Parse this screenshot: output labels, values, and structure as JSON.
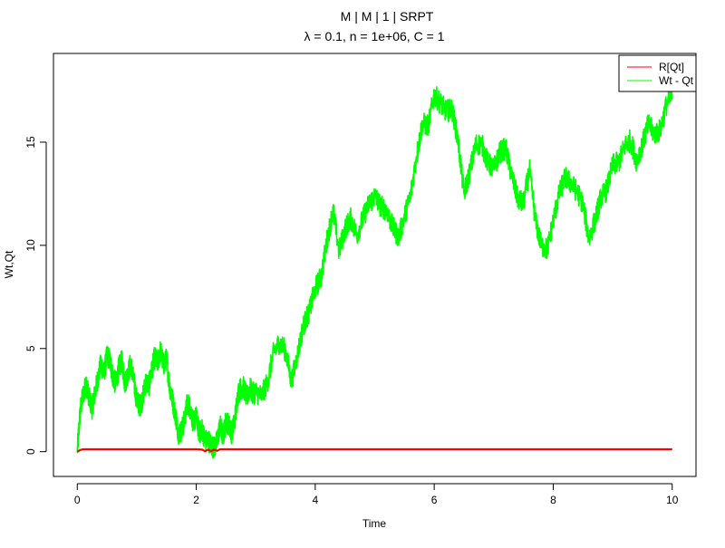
{
  "chart_data": {
    "type": "line",
    "title": "M | M | 1 | SRPT",
    "subtitle": "λ = 0.1, n = 1e+06, C = 1",
    "xlabel": "Time",
    "ylabel": "Wt,Qt",
    "xlim": [
      -0.4,
      10.4
    ],
    "ylim": [
      -1.2,
      19.3
    ],
    "xticks": [
      0,
      2,
      4,
      6,
      8,
      10
    ],
    "yticks": [
      0,
      5,
      10,
      15
    ],
    "grid": false,
    "legend_position": "top-right",
    "series": [
      {
        "name": "R[Qt]",
        "color": "#ff0000",
        "x": [
          0,
          0.05,
          0.1,
          0.5,
          1.0,
          1.5,
          2.0,
          2.1,
          2.15,
          2.2,
          2.25,
          2.3,
          2.35,
          2.4,
          2.6,
          3,
          4,
          5,
          6,
          7,
          8,
          9,
          10
        ],
        "y": [
          0,
          0.08,
          0.12,
          0.12,
          0.12,
          0.12,
          0.12,
          0.1,
          0.02,
          0.1,
          0.02,
          0.1,
          0.04,
          0.12,
          0.12,
          0.12,
          0.12,
          0.12,
          0.12,
          0.12,
          0.12,
          0.12,
          0.12
        ]
      },
      {
        "name": "Wt - Qt",
        "color": "#00ff00",
        "x": [
          0,
          0.05,
          0.1,
          0.15,
          0.2,
          0.25,
          0.3,
          0.35,
          0.4,
          0.45,
          0.5,
          0.55,
          0.6,
          0.65,
          0.7,
          0.75,
          0.8,
          0.85,
          0.9,
          0.95,
          1.0,
          1.05,
          1.1,
          1.15,
          1.2,
          1.25,
          1.3,
          1.35,
          1.4,
          1.45,
          1.5,
          1.55,
          1.6,
          1.65,
          1.7,
          1.75,
          1.8,
          1.85,
          1.9,
          1.95,
          2.0,
          2.05,
          2.1,
          2.15,
          2.2,
          2.25,
          2.3,
          2.35,
          2.4,
          2.45,
          2.5,
          2.55,
          2.6,
          2.65,
          2.7,
          2.75,
          2.8,
          2.85,
          2.9,
          2.95,
          3.0,
          3.1,
          3.2,
          3.3,
          3.4,
          3.5,
          3.6,
          3.7,
          3.8,
          3.9,
          4.0,
          4.1,
          4.2,
          4.3,
          4.4,
          4.5,
          4.6,
          4.7,
          4.8,
          4.9,
          5.0,
          5.1,
          5.2,
          5.3,
          5.4,
          5.5,
          5.6,
          5.7,
          5.8,
          5.9,
          6.0,
          6.1,
          6.2,
          6.3,
          6.4,
          6.5,
          6.6,
          6.7,
          6.8,
          6.9,
          7.0,
          7.1,
          7.2,
          7.3,
          7.4,
          7.5,
          7.6,
          7.7,
          7.8,
          7.9,
          8.0,
          8.1,
          8.2,
          8.3,
          8.4,
          8.5,
          8.6,
          8.7,
          8.8,
          8.9,
          9.0,
          9.1,
          9.2,
          9.3,
          9.4,
          9.5,
          9.6,
          9.7,
          9.8,
          9.9,
          10.0
        ],
        "y": [
          0,
          2.0,
          2.8,
          3.3,
          2.6,
          2.1,
          2.9,
          3.6,
          4.3,
          3.8,
          4.7,
          4.4,
          3.6,
          3.3,
          4.1,
          4.4,
          3.3,
          3.8,
          4.3,
          3.4,
          2.5,
          2.2,
          2.6,
          3.4,
          3.2,
          3.9,
          4.6,
          4.3,
          4.9,
          4.2,
          4.5,
          3.2,
          2.5,
          1.8,
          0.9,
          1.0,
          1.5,
          2.4,
          2.1,
          1.4,
          1.7,
          0.9,
          1.1,
          0.5,
          0.6,
          0.3,
          0.2,
          0.5,
          1.3,
          0.7,
          1.5,
          1.3,
          0.9,
          1.6,
          2.8,
          3.1,
          3.1,
          2.6,
          3.1,
          2.8,
          2.9,
          2.7,
          3.4,
          4.8,
          5.3,
          4.9,
          3.4,
          4.7,
          6.1,
          6.8,
          7.9,
          8.5,
          10.3,
          11.7,
          9.7,
          10.8,
          11.3,
          10.5,
          11.3,
          12.0,
          12.4,
          11.9,
          11.7,
          10.9,
          10.4,
          11.4,
          12.4,
          14.3,
          15.9,
          15.8,
          17.3,
          16.9,
          16.5,
          16.6,
          15.1,
          12.5,
          13.6,
          14.9,
          14.9,
          14.0,
          13.7,
          14.5,
          14.7,
          13.4,
          12.3,
          12.0,
          13.7,
          11.2,
          10.0,
          9.8,
          11.2,
          12.5,
          13.3,
          13.0,
          12.6,
          12.0,
          10.3,
          11.2,
          12.3,
          12.7,
          13.9,
          14.0,
          14.8,
          15.1,
          14.1,
          14.9,
          15.9,
          15.4,
          15.6,
          16.8,
          17.3
        ]
      }
    ]
  }
}
